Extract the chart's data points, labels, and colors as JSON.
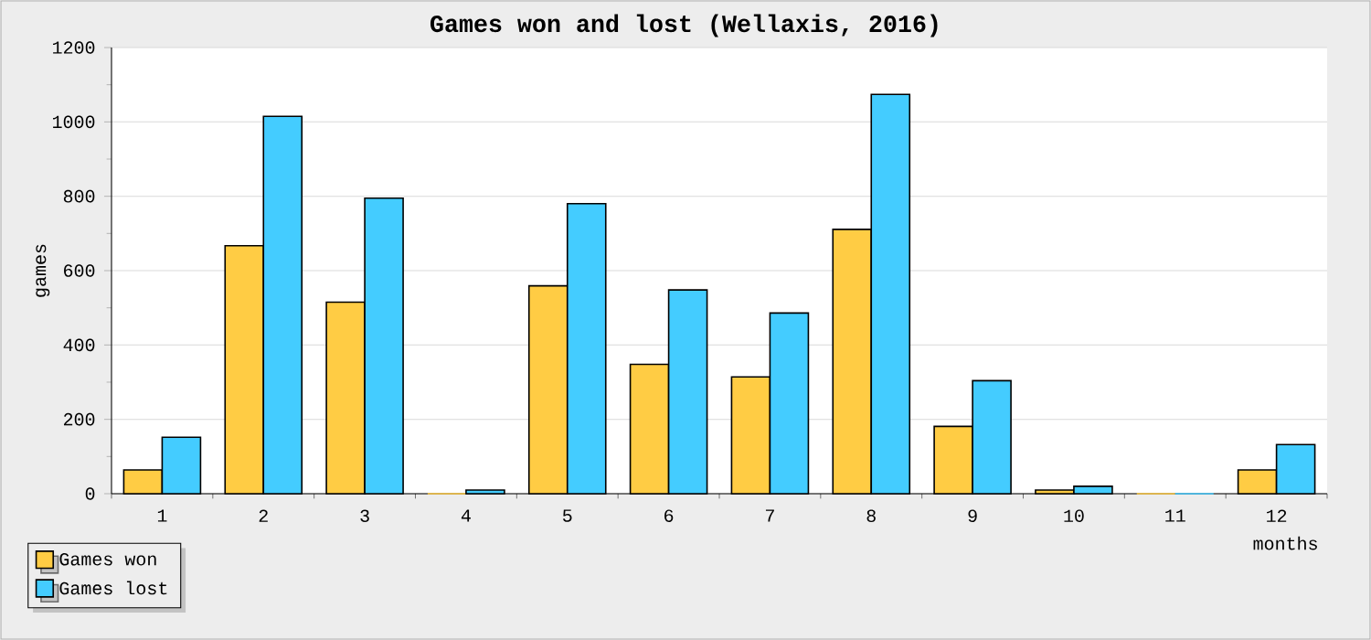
{
  "chart_data": {
    "type": "bar",
    "title": "Games won and lost (Wellaxis, 2016)",
    "xlabel": "months",
    "ylabel": "games",
    "categories": [
      "1",
      "2",
      "3",
      "4",
      "5",
      "6",
      "7",
      "8",
      "9",
      "10",
      "11",
      "12"
    ],
    "series": [
      {
        "name": "Games won",
        "color": "#ffcc44",
        "values": [
          64,
          667,
          515,
          0,
          559,
          348,
          314,
          711,
          181,
          10,
          0,
          64
        ]
      },
      {
        "name": "Games lost",
        "color": "#44ccff",
        "values": [
          152,
          1015,
          795,
          10,
          780,
          548,
          486,
          1074,
          304,
          20,
          0,
          132
        ]
      }
    ],
    "ylim": [
      0,
      1200
    ],
    "yticks": [
      0,
      {
        "value": 100,
        "label": null
      },
      200,
      {
        "value": 300,
        "label": null
      },
      400,
      {
        "value": 500,
        "label": null
      },
      600,
      {
        "value": 700,
        "label": null
      },
      800,
      {
        "value": 900,
        "label": null
      },
      1000,
      {
        "value": 1100,
        "label": null
      },
      1200
    ],
    "grid": "y",
    "legend": "bottom left"
  }
}
